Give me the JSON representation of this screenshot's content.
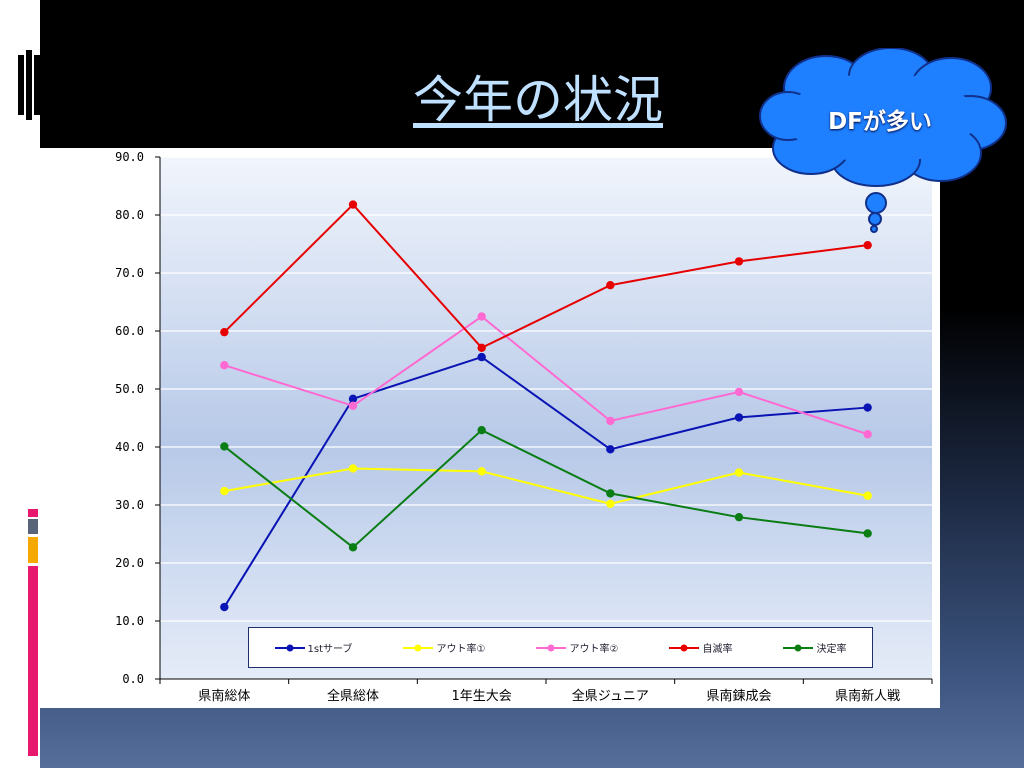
{
  "slide": {
    "title": "今年の状況"
  },
  "callout": {
    "text": "DFが多い",
    "fill": "#1e7fff"
  },
  "chart_data": {
    "type": "line",
    "categories": [
      "県南総体",
      "全県総体",
      "1年生大会",
      "全県ジュニア",
      "県南鍊成会",
      "県南新人戦"
    ],
    "ylim": [
      0,
      90
    ],
    "yticks": [
      "0.0",
      "10.0",
      "20.0",
      "30.0",
      "40.0",
      "50.0",
      "60.0",
      "70.0",
      "80.0",
      "90.0"
    ],
    "grid": true,
    "legend_position": "bottom-inside",
    "series": [
      {
        "name": "1stサーブ",
        "color": "#0a14b4",
        "values": [
          12.4,
          48.3,
          55.5,
          39.6,
          45.1,
          46.8
        ]
      },
      {
        "name": "アウト率①",
        "color": "#ffff00",
        "values": [
          32.4,
          36.3,
          35.8,
          30.2,
          35.6,
          31.6
        ]
      },
      {
        "name": "アウト率②",
        "color": "#ff6ad2",
        "values": [
          54.1,
          47.1,
          62.5,
          44.5,
          49.5,
          42.2
        ]
      },
      {
        "name": "自滅率",
        "color": "#e60000",
        "values": [
          59.8,
          81.8,
          57.1,
          67.9,
          72.0,
          74.8
        ]
      },
      {
        "name": "決定率",
        "color": "#0a7d14",
        "values": [
          40.1,
          22.7,
          42.9,
          32.0,
          27.9,
          25.1
        ]
      }
    ]
  }
}
